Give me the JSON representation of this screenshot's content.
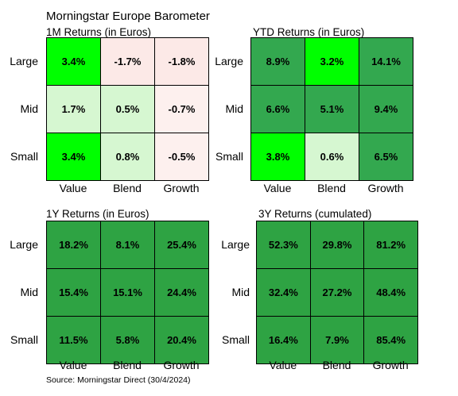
{
  "title": "Morningstar Europe Barometer",
  "source": "Source: Morningstar Direct (30/4/2024)",
  "rows": [
    "Large",
    "Mid",
    "Small"
  ],
  "cols": [
    "Value",
    "Blend",
    "Growth"
  ],
  "colors": {
    "bright_green": "#00ff00",
    "mid_green": "#32a852",
    "dark_green": "#2e9e40",
    "light_green": "#d6f7d1",
    "light_pink": "#fce9e7",
    "very_light_pink": "#fdf0ee"
  },
  "chart_data": [
    {
      "type": "heatmap",
      "title": "1M Returns (in Euros)",
      "rows": [
        "Large",
        "Mid",
        "Small"
      ],
      "columns": [
        "Value",
        "Blend",
        "Growth"
      ],
      "values": [
        [
          3.4,
          -1.7,
          -1.8
        ],
        [
          1.7,
          0.5,
          -0.7
        ],
        [
          3.4,
          0.8,
          -0.5
        ]
      ],
      "labels": [
        [
          "3.4%",
          "-1.7%",
          "-1.8%"
        ],
        [
          "1.7%",
          "0.5%",
          "-0.7%"
        ],
        [
          "3.4%",
          "0.8%",
          "-0.5%"
        ]
      ],
      "colors": [
        [
          "#00ff00",
          "#fce9e7",
          "#fce9e7"
        ],
        [
          "#d6f7d1",
          "#d6f7d1",
          "#fdf0ee"
        ],
        [
          "#00ff00",
          "#d6f7d1",
          "#fdf0ee"
        ]
      ]
    },
    {
      "type": "heatmap",
      "title": "YTD Returns (in Euros)",
      "rows": [
        "Large",
        "Mid",
        "Small"
      ],
      "columns": [
        "Value",
        "Blend",
        "Growth"
      ],
      "values": [
        [
          8.9,
          3.2,
          14.1
        ],
        [
          6.6,
          5.1,
          9.4
        ],
        [
          3.8,
          0.6,
          6.5
        ]
      ],
      "labels": [
        [
          "8.9%",
          "3.2%",
          "14.1%"
        ],
        [
          "6.6%",
          "5.1%",
          "9.4%"
        ],
        [
          "3.8%",
          "0.6%",
          "6.5%"
        ]
      ],
      "colors": [
        [
          "#33a84f",
          "#00ff00",
          "#33a84f"
        ],
        [
          "#33a84f",
          "#33a84f",
          "#33a84f"
        ],
        [
          "#00ff00",
          "#d6f7d1",
          "#33a84f"
        ]
      ]
    },
    {
      "type": "heatmap",
      "title": "1Y Returns (in Euros)",
      "rows": [
        "Large",
        "Mid",
        "Small"
      ],
      "columns": [
        "Value",
        "Blend",
        "Growth"
      ],
      "values": [
        [
          18.2,
          8.1,
          25.4
        ],
        [
          15.4,
          15.1,
          24.4
        ],
        [
          11.5,
          5.8,
          20.4
        ]
      ],
      "labels": [
        [
          "18.2%",
          "8.1%",
          "25.4%"
        ],
        [
          "15.4%",
          "15.1%",
          "24.4%"
        ],
        [
          "11.5%",
          "5.8%",
          "20.4%"
        ]
      ],
      "colors": [
        [
          "#2ea343",
          "#2ea343",
          "#2ea343"
        ],
        [
          "#2ea343",
          "#2ea343",
          "#2ea343"
        ],
        [
          "#2ea343",
          "#2ea343",
          "#2ea343"
        ]
      ]
    },
    {
      "type": "heatmap",
      "title": "3Y Returns (cumulated)",
      "rows": [
        "Large",
        "Mid",
        "Small"
      ],
      "columns": [
        "Value",
        "Blend",
        "Growth"
      ],
      "values": [
        [
          52.3,
          29.8,
          81.2
        ],
        [
          32.4,
          27.2,
          48.4
        ],
        [
          16.4,
          7.9,
          85.4
        ]
      ],
      "labels": [
        [
          "52.3%",
          "29.8%",
          "81.2%"
        ],
        [
          "32.4%",
          "27.2%",
          "48.4%"
        ],
        [
          "16.4%",
          "7.9%",
          "85.4%"
        ]
      ],
      "colors": [
        [
          "#2ea343",
          "#2ea343",
          "#2ea343"
        ],
        [
          "#2ea343",
          "#2ea343",
          "#2ea343"
        ],
        [
          "#2ea343",
          "#2ea343",
          "#2ea343"
        ]
      ]
    }
  ]
}
